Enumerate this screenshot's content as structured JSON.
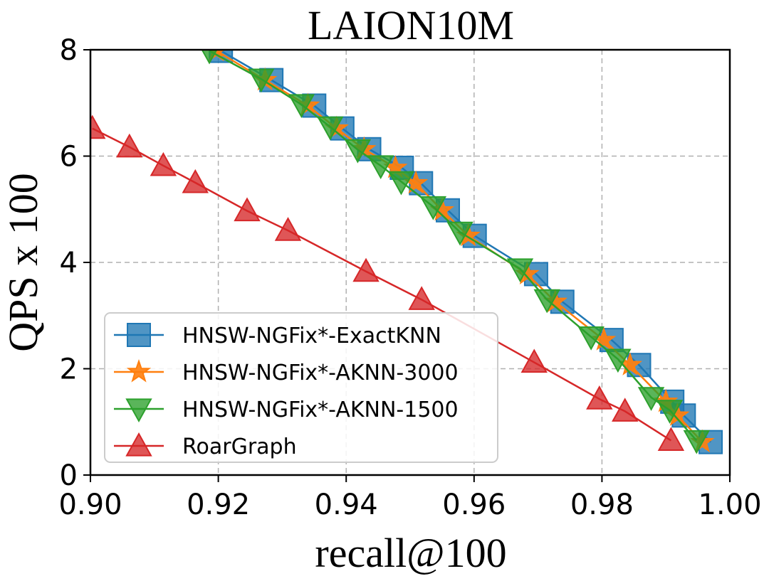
{
  "chart_data": {
    "type": "line",
    "title": "LAION10M",
    "xlabel": "recall@100",
    "ylabel": "QPS x 100",
    "xlim": [
      0.9,
      1.0
    ],
    "ylim": [
      0,
      8
    ],
    "xticks": [
      "0.90",
      "0.92",
      "0.94",
      "0.96",
      "0.98",
      "1.00"
    ],
    "yticks": [
      "0",
      "2",
      "4",
      "6",
      "8"
    ],
    "grid": true,
    "legend_position": "lower-left",
    "series": [
      {
        "name": "HNSW-NGFix*-ExactKNN",
        "color": "#1f77b4",
        "marker": "square",
        "x": [
          0.9204,
          0.9283,
          0.935,
          0.9394,
          0.9436,
          0.9487,
          0.9517,
          0.9559,
          0.9601,
          0.9697,
          0.9738,
          0.9815,
          0.9858,
          0.991,
          0.9928,
          0.997
        ],
        "y": [
          7.98,
          7.43,
          6.95,
          6.52,
          6.13,
          5.78,
          5.49,
          4.98,
          4.5,
          3.78,
          3.26,
          2.54,
          2.07,
          1.38,
          1.12,
          0.62
        ]
      },
      {
        "name": "HNSW-NGFix*-AKNN-3000",
        "color": "#ff7f0e",
        "marker": "star",
        "x": [
          0.9197,
          0.9273,
          0.934,
          0.9385,
          0.9428,
          0.9477,
          0.9509,
          0.955,
          0.9591,
          0.9683,
          0.9727,
          0.9803,
          0.9844,
          0.99,
          0.9918,
          0.9957
        ],
        "y": [
          7.98,
          7.43,
          6.95,
          6.52,
          6.13,
          5.78,
          5.49,
          4.98,
          4.5,
          3.78,
          3.26,
          2.54,
          2.07,
          1.38,
          1.12,
          0.62
        ]
      },
      {
        "name": "HNSW-NGFix*-AKNN-1500",
        "color": "#2ca02c",
        "marker": "triangle-down",
        "x": [
          0.9186,
          0.9267,
          0.933,
          0.9375,
          0.9418,
          0.9454,
          0.9486,
          0.9536,
          0.9578,
          0.9672,
          0.9714,
          0.9783,
          0.9825,
          0.9877,
          0.9906,
          0.9948
        ],
        "y": [
          7.98,
          7.45,
          6.97,
          6.55,
          6.12,
          5.82,
          5.52,
          5.05,
          4.57,
          3.88,
          3.3,
          2.6,
          2.18,
          1.46,
          1.22,
          0.65
        ]
      },
      {
        "name": "RoarGraph",
        "color": "#d62728",
        "marker": "triangle-up",
        "x": [
          0.9003,
          0.9061,
          0.9114,
          0.9164,
          0.9245,
          0.9309,
          0.9431,
          0.9518,
          0.9694,
          0.9796,
          0.9836,
          0.9908
        ],
        "y": [
          6.52,
          6.17,
          5.82,
          5.5,
          4.97,
          4.6,
          3.83,
          3.3,
          2.12,
          1.43,
          1.2,
          0.65
        ]
      }
    ]
  }
}
